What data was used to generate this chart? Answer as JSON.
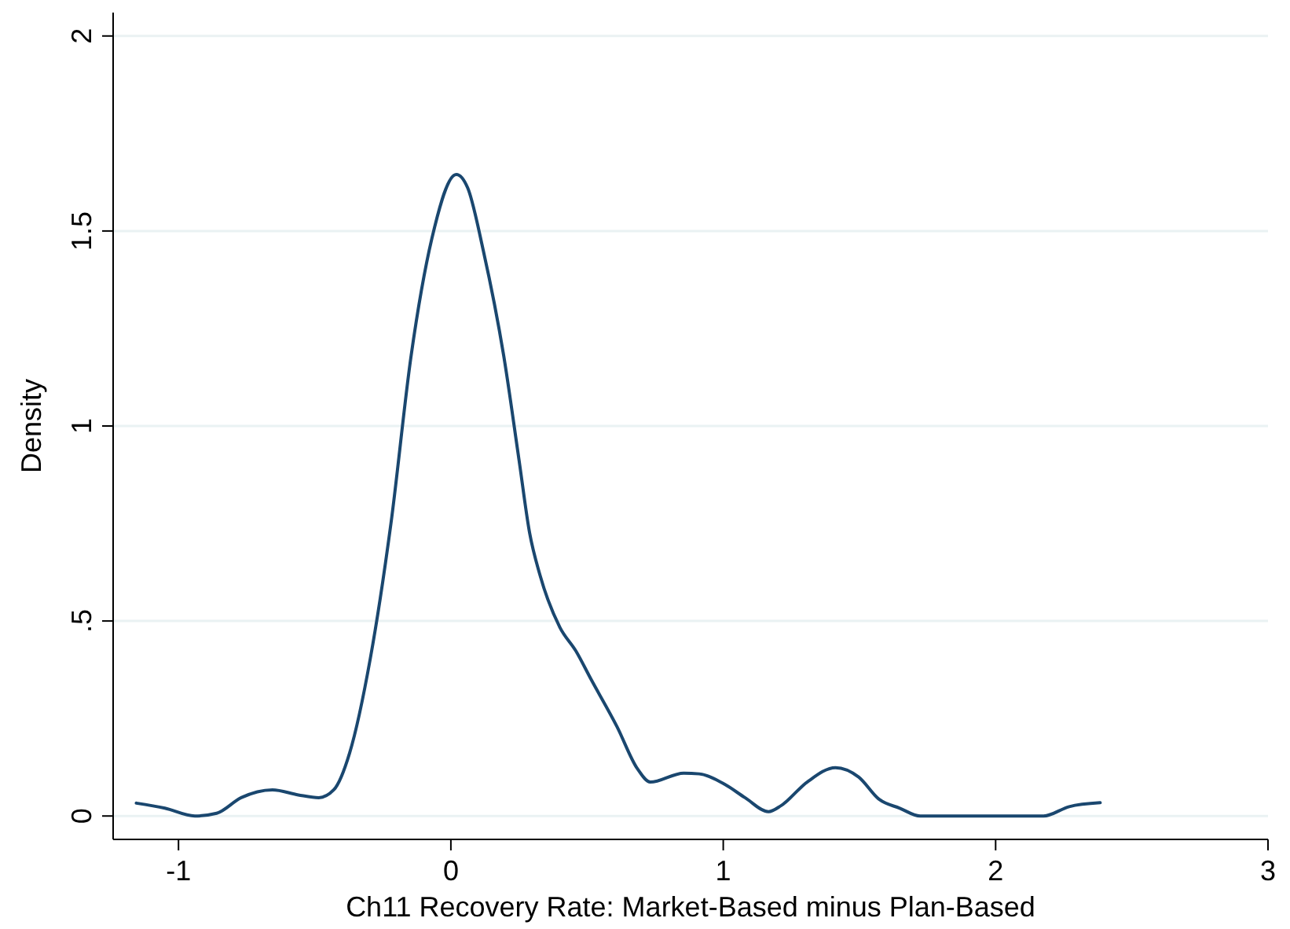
{
  "chart_data": {
    "type": "line",
    "xlabel": "Ch11 Recovery Rate: Market-Based minus Plan-Based",
    "ylabel": "Density",
    "xlim": [
      -1.24,
      3
    ],
    "xticks": [
      -1,
      0,
      1,
      2,
      3
    ],
    "ylim": [
      -0.06,
      2.06
    ],
    "yticks": [
      0,
      {
        "value": 0.5,
        "label": ".5"
      },
      1,
      1.5,
      2
    ],
    "grid": "y",
    "marker": "none",
    "line_style": "solid",
    "series": [
      {
        "color": "#1a476f",
        "x": [
          -1.155,
          -1.05,
          -0.94,
          -0.86,
          -0.77,
          -0.655,
          -0.56,
          -0.485,
          -0.43,
          -0.372,
          -0.296,
          -0.22,
          -0.146,
          -0.07,
          0.02,
          0.062,
          0.119,
          0.194,
          0.25,
          0.289,
          0.327,
          0.4,
          0.459,
          0.515,
          0.61,
          0.685,
          0.732,
          0.855,
          0.912,
          1.006,
          1.08,
          1.166,
          1.213,
          1.308,
          1.412,
          1.497,
          1.572,
          1.648,
          1.723,
          2.176,
          2.27,
          2.384
        ],
        "values": [
          0.033,
          0.02,
          0,
          0.007,
          0.047,
          0.067,
          0.054,
          0.047,
          0.067,
          0.161,
          0.403,
          0.75,
          1.18,
          1.48,
          1.645,
          1.61,
          1.45,
          1.18,
          0.914,
          0.726,
          0.618,
          0.484,
          0.423,
          0.35,
          0.229,
          0.121,
          0.087,
          0.11,
          0.108,
          0.081,
          0.047,
          0.011,
          0.027,
          0.087,
          0.124,
          0.1,
          0.043,
          0.02,
          0,
          0,
          0.024,
          0.034
        ]
      }
    ]
  }
}
